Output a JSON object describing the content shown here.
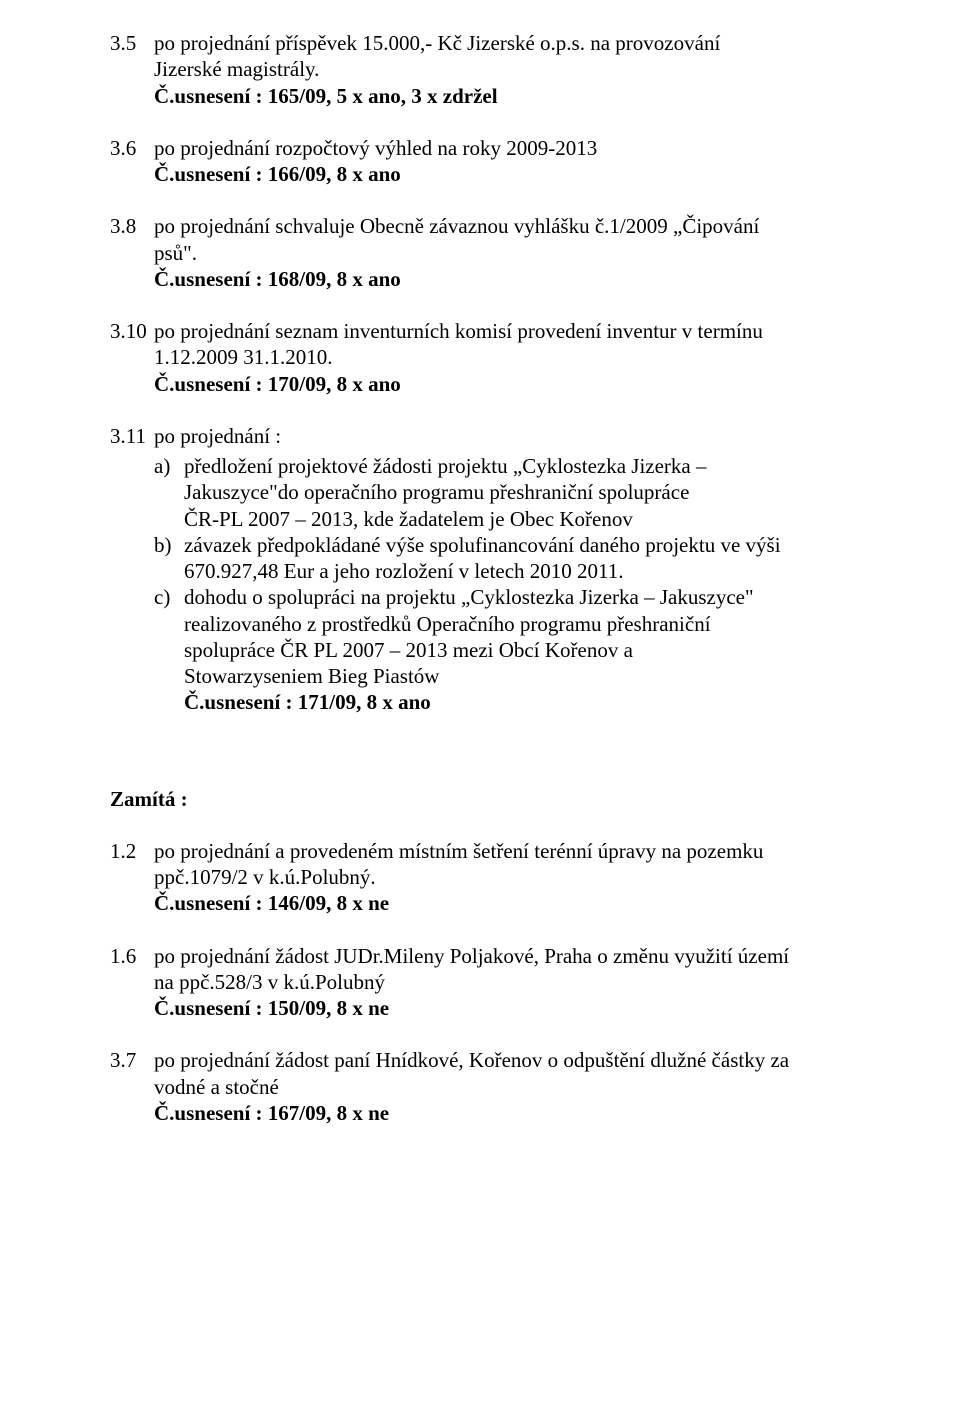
{
  "items35": {
    "num": "3.5",
    "l1": "po projednání příspěvek 15.000,- Kč Jizerské o.p.s. na provozování",
    "l2": "Jizerské magistrály.",
    "res": "Č.usnesení : 165/09,  5 x ano, 3 x zdržel"
  },
  "items36": {
    "num": "3.6",
    "l1": "po projednání rozpočtový výhled na roky 2009-2013",
    "res": "Č.usnesení : 166/09, 8 x ano"
  },
  "items38": {
    "num": "3.8",
    "l1": "po projednání schvaluje Obecně závaznou vyhlášku č.1/2009 „Čipování",
    "l2": "psů\".",
    "res": "Č.usnesení : 168/09, 8 x ano"
  },
  "items310": {
    "num": "3.10",
    "l1": "po projednání seznam inventurních komisí provedení inventur v termínu",
    "l2": "1.12.2009 31.1.2010.",
    "res": "Č.usnesení : 170/09, 8 x ano"
  },
  "items311": {
    "num": "3.11",
    "l1": "po projednání :",
    "a_mark": "a)",
    "a1": "předložení projektové žádosti projektu „Cyklostezka Jizerka –",
    "a2": "Jakuszyce\"do operačního programu přeshraniční spolupráce",
    "a3": "ČR-PL 2007 – 2013, kde žadatelem je Obec Kořenov",
    "b_mark": "b)",
    "b1": "závazek předpokládané výše spolufinancování daného projektu ve výši",
    "b2": "670.927,48 Eur a jeho rozložení v letech 2010 2011.",
    "c_mark": "c)",
    "c1": "dohodu o spolupráci na projektu „Cyklostezka Jizerka – Jakuszyce\"",
    "c2": "realizovaného z prostředků Operačního programu přeshraniční",
    "c3": "spolupráce ČR PL 2007 – 2013 mezi Obcí Kořenov a",
    "c4": "Stowarzyseniem Bieg Piastów",
    "res": "Č.usnesení : 171/09, 8 x ano"
  },
  "zamita": "Zamítá :",
  "z12": {
    "num": "1.2",
    "l1": "po projednání a provedeném místním šetření terénní úpravy na pozemku",
    "l2": "ppč.1079/2 v k.ú.Polubný.",
    "res": "Č.usnesení : 146/09, 8 x ne"
  },
  "z16": {
    "num": "1.6",
    "l1": "po projednání žádost JUDr.Mileny Poljakové, Praha o změnu využití území",
    "l2": "na ppč.528/3 v k.ú.Polubný",
    "res": "Č.usnesení : 150/09, 8 x ne"
  },
  "z37": {
    "num": "3.7",
    "l1": "po projednání žádost paní Hnídkové, Kořenov o odpuštění dlužné částky za",
    "l2": "vodné a stočné",
    "res": "Č.usnesení : 167/09, 8 x ne"
  }
}
